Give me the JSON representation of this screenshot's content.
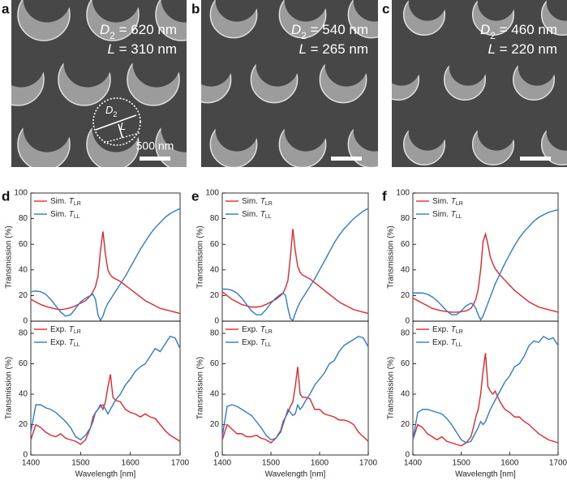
{
  "panels": [
    {
      "label": "a",
      "d2": "D2 = 620 nm",
      "l": "L = 310 nm",
      "scale_label": "500 nm",
      "inset_d2": "D2",
      "inset_l": "L"
    },
    {
      "label": "b",
      "d2": "D2 = 540 nm",
      "l": "L = 265 nm"
    },
    {
      "label": "c",
      "d2": "D2 = 460 nm",
      "l": "L = 220 nm"
    }
  ],
  "chart_data": [
    {
      "type": "line",
      "label": "d",
      "ylabel": "Transmission (%)",
      "xlim": [
        1400,
        1700
      ],
      "ylim": [
        0,
        100
      ],
      "yticks": [
        0,
        20,
        40,
        60,
        80,
        100
      ],
      "legend": "upper left",
      "x": [
        1400,
        1410,
        1420,
        1430,
        1440,
        1450,
        1460,
        1470,
        1480,
        1490,
        1500,
        1510,
        1520,
        1525,
        1530,
        1535,
        1540,
        1545,
        1550,
        1555,
        1560,
        1565,
        1570,
        1580,
        1590,
        1600,
        1610,
        1620,
        1630,
        1640,
        1650,
        1660,
        1670,
        1680,
        1690,
        1700
      ],
      "series": [
        {
          "name": "Sim. TLR",
          "color": "#e8262a",
          "values": [
            17,
            15,
            13,
            11.5,
            10.5,
            9.5,
            9,
            9.5,
            10.5,
            12,
            14,
            16,
            20,
            23,
            27,
            35,
            55,
            70,
            52,
            40,
            36,
            34,
            33,
            31,
            28,
            25,
            22,
            19,
            16,
            14,
            12,
            10,
            9,
            8,
            7,
            6
          ]
        },
        {
          "name": "Sim. TLL",
          "color": "#2f7bd0",
          "values": [
            23,
            23.5,
            23,
            21,
            17,
            12,
            7,
            4,
            5,
            10,
            15,
            18,
            20,
            21,
            17,
            5,
            0.5,
            4,
            10,
            14,
            17,
            20,
            23,
            29,
            35,
            42,
            49,
            56,
            62,
            68,
            73,
            77,
            81,
            84,
            86,
            88
          ]
        }
      ]
    },
    {
      "type": "line",
      "ylabel": "Transmission (%)",
      "xlabel": "Wavelength [nm]",
      "xlim": [
        1400,
        1700
      ],
      "ylim": [
        0,
        88
      ],
      "xticks": [
        1400,
        1500,
        1600,
        1700
      ],
      "yticks": [
        0,
        20,
        40,
        60,
        80
      ],
      "legend": "upper left",
      "x": [
        1400,
        1410,
        1420,
        1430,
        1440,
        1450,
        1460,
        1470,
        1480,
        1490,
        1500,
        1510,
        1520,
        1525,
        1530,
        1535,
        1540,
        1545,
        1550,
        1555,
        1560,
        1565,
        1570,
        1580,
        1590,
        1600,
        1610,
        1620,
        1630,
        1640,
        1650,
        1660,
        1670,
        1680,
        1690,
        1700
      ],
      "series": [
        {
          "name": "Exp. TLR",
          "color": "#e8262a",
          "values": [
            10,
            20,
            18,
            15,
            13,
            12,
            14,
            11,
            10,
            9,
            7,
            10,
            18,
            25,
            28,
            30,
            33,
            30,
            35,
            45,
            53,
            38,
            36,
            35,
            30,
            28,
            27,
            25,
            27,
            25,
            24,
            20,
            16,
            13,
            11,
            9
          ]
        },
        {
          "name": "Exp. TLL",
          "color": "#2f7bd0",
          "values": [
            15,
            33,
            33,
            31,
            30,
            28,
            25,
            22,
            18,
            12,
            10,
            13,
            18,
            22,
            28,
            30,
            32,
            33,
            30,
            27,
            30,
            33,
            36,
            40,
            46,
            50,
            55,
            58,
            60,
            65,
            70,
            68,
            73,
            78,
            77,
            70
          ]
        }
      ]
    },
    {
      "type": "line",
      "label": "e",
      "ylabel": "Transmission (%)",
      "xlim": [
        1400,
        1700
      ],
      "ylim": [
        0,
        100
      ],
      "yticks": [
        0,
        20,
        40,
        60,
        80,
        100
      ],
      "legend": "upper left",
      "x": [
        1400,
        1410,
        1420,
        1430,
        1440,
        1450,
        1460,
        1470,
        1480,
        1490,
        1500,
        1510,
        1520,
        1525,
        1530,
        1535,
        1540,
        1545,
        1550,
        1555,
        1560,
        1565,
        1570,
        1580,
        1590,
        1600,
        1610,
        1620,
        1630,
        1640,
        1650,
        1660,
        1670,
        1680,
        1690,
        1700
      ],
      "series": [
        {
          "name": "Sim. TLR",
          "color": "#e8262a",
          "values": [
            23,
            20,
            17,
            15,
            13,
            12,
            11,
            11,
            11.5,
            13,
            15,
            17,
            20,
            22,
            26,
            32,
            50,
            72,
            55,
            43,
            38,
            36,
            35,
            33,
            30,
            27,
            24,
            21,
            18,
            15,
            13,
            11,
            9,
            8,
            7,
            6
          ]
        },
        {
          "name": "Sim. TLL",
          "color": "#2f7bd0",
          "values": [
            25,
            25,
            24,
            22,
            18,
            13,
            8,
            5,
            5,
            9,
            14,
            18,
            21,
            22,
            20,
            10,
            2,
            0.5,
            6,
            11,
            15,
            18,
            21,
            27,
            33,
            40,
            47,
            54,
            61,
            67,
            72,
            76,
            80,
            83,
            86,
            88
          ]
        }
      ]
    },
    {
      "type": "line",
      "ylabel": "Transmission (%)",
      "xlabel": "Wavelength [nm]",
      "xlim": [
        1400,
        1700
      ],
      "ylim": [
        0,
        88
      ],
      "xticks": [
        1400,
        1500,
        1600,
        1700
      ],
      "yticks": [
        0,
        20,
        40,
        60,
        80
      ],
      "legend": "upper left",
      "x": [
        1400,
        1410,
        1420,
        1430,
        1440,
        1450,
        1460,
        1470,
        1480,
        1490,
        1500,
        1510,
        1520,
        1525,
        1530,
        1535,
        1540,
        1545,
        1550,
        1555,
        1560,
        1565,
        1570,
        1580,
        1590,
        1600,
        1610,
        1620,
        1630,
        1640,
        1650,
        1660,
        1670,
        1680,
        1690,
        1700
      ],
      "series": [
        {
          "name": "Exp. TLR",
          "color": "#e8262a",
          "values": [
            10,
            20,
            17,
            14,
            14,
            12,
            12,
            13,
            11,
            10,
            8,
            11,
            16,
            22,
            25,
            28,
            32,
            35,
            45,
            58,
            40,
            38,
            38,
            37,
            30,
            30,
            27,
            26,
            25,
            23,
            23,
            22,
            20,
            15,
            12,
            9
          ]
        },
        {
          "name": "Exp. TLL",
          "color": "#2f7bd0",
          "values": [
            12,
            32,
            33,
            32,
            30,
            28,
            26,
            22,
            18,
            13,
            10,
            11,
            15,
            20,
            25,
            30,
            28,
            26,
            27,
            33,
            30,
            32,
            35,
            40,
            46,
            50,
            54,
            60,
            62,
            68,
            72,
            74,
            76,
            78,
            77,
            71
          ]
        }
      ]
    },
    {
      "type": "line",
      "label": "f",
      "ylabel": "Transmission (%)",
      "xlim": [
        1400,
        1700
      ],
      "ylim": [
        0,
        100
      ],
      "yticks": [
        0,
        20,
        40,
        60,
        80,
        100
      ],
      "legend": "upper left",
      "x": [
        1400,
        1410,
        1420,
        1430,
        1440,
        1450,
        1460,
        1470,
        1480,
        1490,
        1500,
        1510,
        1520,
        1525,
        1530,
        1535,
        1540,
        1545,
        1550,
        1555,
        1560,
        1565,
        1570,
        1580,
        1590,
        1600,
        1610,
        1620,
        1630,
        1640,
        1650,
        1660,
        1670,
        1680,
        1690,
        1700
      ],
      "series": [
        {
          "name": "Sim. TLR",
          "color": "#e8262a",
          "values": [
            18,
            16,
            14,
            12,
            10,
            9,
            8,
            7.5,
            7,
            7,
            7.5,
            8,
            10,
            13,
            17,
            25,
            40,
            62,
            68,
            60,
            50,
            45,
            41,
            36,
            32,
            28,
            24,
            21,
            18,
            15,
            13,
            11,
            10,
            9,
            8,
            7
          ]
        },
        {
          "name": "Sim. TLL",
          "color": "#2f7bd0",
          "values": [
            22,
            22,
            22,
            21,
            19,
            16,
            12,
            8,
            5,
            5,
            8,
            12,
            14,
            13,
            10,
            5,
            1,
            4,
            9,
            14,
            19,
            24,
            29,
            37,
            45,
            52,
            59,
            65,
            70,
            74,
            78,
            81,
            83,
            85,
            86,
            87
          ]
        }
      ]
    },
    {
      "type": "line",
      "ylabel": "Transmission (%)",
      "xlabel": "Wavelength [nm]",
      "xlim": [
        1400,
        1700
      ],
      "ylim": [
        0,
        88
      ],
      "xticks": [
        1400,
        1500,
        1600,
        1700
      ],
      "yticks": [
        0,
        20,
        40,
        60,
        80
      ],
      "legend": "upper left",
      "x": [
        1400,
        1410,
        1420,
        1430,
        1440,
        1450,
        1460,
        1470,
        1480,
        1490,
        1500,
        1510,
        1520,
        1525,
        1530,
        1535,
        1540,
        1545,
        1550,
        1555,
        1560,
        1565,
        1570,
        1580,
        1590,
        1600,
        1610,
        1620,
        1630,
        1640,
        1650,
        1660,
        1670,
        1680,
        1690,
        1700
      ],
      "series": [
        {
          "name": "Exp. TLR",
          "color": "#e8262a",
          "values": [
            10,
            20,
            18,
            14,
            12,
            10,
            12,
            9,
            8,
            7,
            6,
            8,
            12,
            18,
            25,
            30,
            40,
            55,
            67,
            45,
            42,
            40,
            42,
            35,
            30,
            28,
            25,
            25,
            22,
            20,
            17,
            14,
            12,
            10,
            9,
            8
          ]
        },
        {
          "name": "Exp. TLL",
          "color": "#2f7bd0",
          "values": [
            10,
            28,
            30,
            30,
            29,
            28,
            27,
            24,
            20,
            15,
            10,
            8,
            9,
            12,
            15,
            18,
            22,
            20,
            22,
            26,
            30,
            33,
            36,
            42,
            48,
            52,
            58,
            60,
            65,
            72,
            75,
            74,
            78,
            76,
            77,
            72
          ]
        }
      ]
    }
  ]
}
